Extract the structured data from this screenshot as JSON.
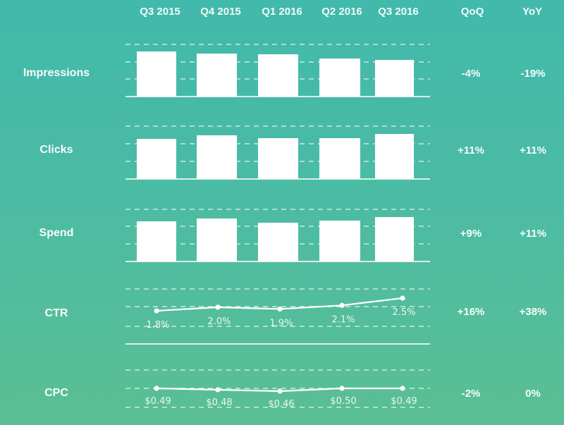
{
  "header": {
    "periods": [
      "Q3 2015",
      "Q4 2015",
      "Q1 2016",
      "Q2 2016",
      "Q3 2016"
    ],
    "qoq_label": "QoQ",
    "yoy_label": "YoY"
  },
  "rows": [
    {
      "label": "Impressions",
      "qoq": "-4%",
      "yoy": "-19%"
    },
    {
      "label": "Clicks",
      "qoq": "+11%",
      "yoy": "+11%"
    },
    {
      "label": "Spend",
      "qoq": "+9%",
      "yoy": "+11%"
    },
    {
      "label": "CTR",
      "qoq": "+16%",
      "yoy": "+38%"
    },
    {
      "label": "CPC",
      "qoq": "-2%",
      "yoy": "0%"
    }
  ],
  "colors": {
    "bg_top": "#41b9ab",
    "bg_bottom": "#5bbf93",
    "bar": "#ffffff",
    "grid": "#d8f0ea"
  },
  "chart_data": [
    {
      "type": "bar",
      "title": "Impressions",
      "categories": [
        "Q3 2015",
        "Q4 2015",
        "Q1 2016",
        "Q2 2016",
        "Q3 2016"
      ],
      "values": [
        64,
        61,
        60,
        54,
        52
      ],
      "unit": "relative bar height (px, unlabeled)",
      "qoq": "-4%",
      "yoy": "-19%",
      "grid": true
    },
    {
      "type": "bar",
      "title": "Clicks",
      "categories": [
        "Q3 2015",
        "Q4 2015",
        "Q1 2016",
        "Q2 2016",
        "Q3 2016"
      ],
      "values": [
        57,
        62,
        58,
        58,
        64
      ],
      "unit": "relative bar height (px, unlabeled)",
      "qoq": "+11%",
      "yoy": "+11%",
      "grid": true
    },
    {
      "type": "bar",
      "title": "Spend",
      "categories": [
        "Q3 2015",
        "Q4 2015",
        "Q1 2016",
        "Q2 2016",
        "Q3 2016"
      ],
      "values": [
        57,
        61,
        55,
        58,
        63
      ],
      "unit": "relative bar height (px, unlabeled)",
      "qoq": "+9%",
      "yoy": "+11%",
      "grid": true
    },
    {
      "type": "line",
      "title": "CTR",
      "categories": [
        "Q3 2015",
        "Q4 2015",
        "Q1 2016",
        "Q2 2016",
        "Q3 2016"
      ],
      "values": [
        1.8,
        2.0,
        1.9,
        2.1,
        2.5
      ],
      "labels": [
        "1.8%",
        "2.0%",
        "1.9%",
        "2.1%",
        "2.5%"
      ],
      "qoq": "+16%",
      "yoy": "+38%",
      "grid": true
    },
    {
      "type": "line",
      "title": "CPC",
      "categories": [
        "Q3 2015",
        "Q4 2015",
        "Q1 2016",
        "Q2 2016",
        "Q3 2016"
      ],
      "values": [
        0.49,
        0.48,
        0.46,
        0.5,
        0.49
      ],
      "labels": [
        "$0.49",
        "$0.48",
        "$0.46",
        "$0.50",
        "$0.49"
      ],
      "qoq": "-2%",
      "yoy": "0%",
      "grid": true
    }
  ]
}
